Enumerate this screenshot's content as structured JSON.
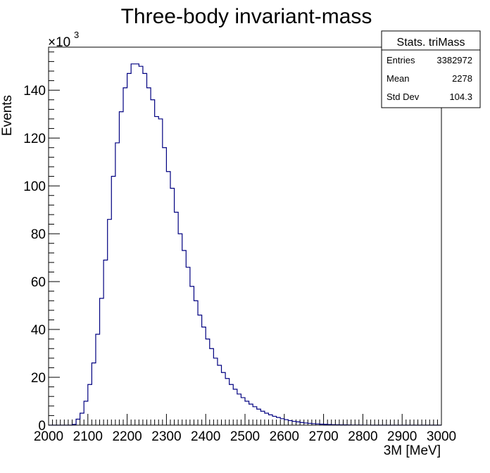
{
  "chart_data": {
    "type": "bar",
    "title": "Three-body invariant-mass",
    "xlabel": "3M [MeV]",
    "ylabel": "Events",
    "y_multiplier_label": "×10",
    "y_multiplier_exponent": "3",
    "xlim": [
      2000,
      3000
    ],
    "ylim": [
      0,
      158
    ],
    "y_units": "thousands",
    "x_ticks": [
      "2000",
      "2100",
      "2200",
      "2300",
      "2400",
      "2500",
      "2600",
      "2700",
      "2800",
      "2900",
      "3000"
    ],
    "y_ticks": [
      "0",
      "20",
      "40",
      "60",
      "80",
      "100",
      "120",
      "140"
    ],
    "bin_edges_start": 2000,
    "bin_width": 10,
    "values": [
      0,
      0,
      0,
      0,
      0,
      0,
      0.3,
      2.5,
      5,
      10,
      17,
      26,
      38,
      53,
      69,
      86,
      104,
      118,
      131,
      141,
      147,
      151,
      151,
      150,
      147,
      141,
      136,
      129,
      128,
      116,
      106,
      99,
      89,
      80,
      73,
      66,
      58,
      52,
      46,
      41,
      36,
      32,
      28,
      25,
      22,
      19.5,
      17,
      15,
      13,
      11.5,
      10,
      8.8,
      7.7,
      6.7,
      5.8,
      5,
      4.3,
      3.7,
      3.2,
      2.7,
      2.3,
      1.9,
      1.6,
      1.35,
      1.1,
      0.9,
      0.75,
      0.6,
      0.5,
      0.4,
      0.32,
      0.25,
      0.2,
      0.16,
      0.12,
      0.1,
      0.08,
      0.06,
      0.04,
      0.03,
      0.02,
      0.015,
      0.01,
      0.008,
      0.006,
      0.004,
      0.003,
      0.002,
      0.001,
      0,
      0,
      0,
      0,
      0,
      0,
      0,
      0,
      0,
      0,
      0
    ],
    "line_color": "#000080",
    "grid": false,
    "legend": "top-right",
    "stats": {
      "title": "Stats. triMass",
      "rows": [
        {
          "label": "Entries",
          "value": "3382972"
        },
        {
          "label": "Mean",
          "value": "2278"
        },
        {
          "label": "Std Dev",
          "value": "104.3"
        }
      ]
    }
  }
}
